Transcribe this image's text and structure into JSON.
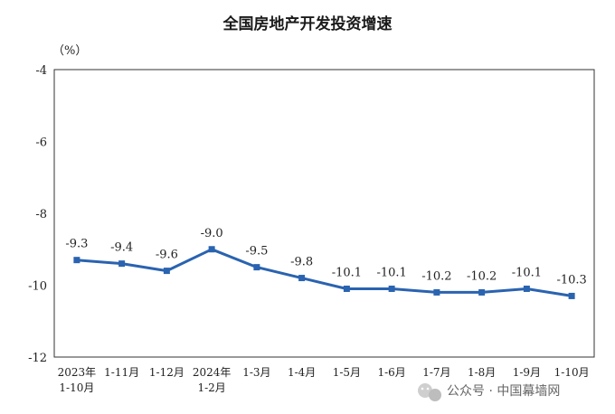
{
  "chart_data": {
    "type": "line",
    "title": "全国房地产开发投资增速",
    "unit": "（%）",
    "ylim": [
      -12,
      -4
    ],
    "yticks": [
      "-4",
      "-6",
      "-8",
      "-10",
      "-12"
    ],
    "categories": [
      [
        "2023年",
        "1-10月"
      ],
      [
        "1-11月"
      ],
      [
        "1-12月"
      ],
      [
        "2024年",
        "1-2月"
      ],
      [
        "1-3月"
      ],
      [
        "1-4月"
      ],
      [
        "1-5月"
      ],
      [
        "1-6月"
      ],
      [
        "1-7月"
      ],
      [
        "1-8月"
      ],
      [
        "1-9月"
      ],
      [
        "1-10月"
      ]
    ],
    "values": [
      -9.3,
      -9.4,
      -9.6,
      -9.0,
      -9.5,
      -9.8,
      -10.1,
      -10.1,
      -10.2,
      -10.2,
      -10.1,
      -10.3
    ],
    "data_labels": [
      "-9.3",
      "-9.4",
      "-9.6",
      "-9.0",
      "-9.5",
      "-9.8",
      "-10.1",
      "-10.1",
      "-10.2",
      "-10.2",
      "-10.1",
      "-10.3"
    ],
    "line_color": "#2a63b0",
    "grid": false
  },
  "watermark": {
    "icon": "wechat-icon",
    "text": "公众号 · 中国幕墙网"
  }
}
